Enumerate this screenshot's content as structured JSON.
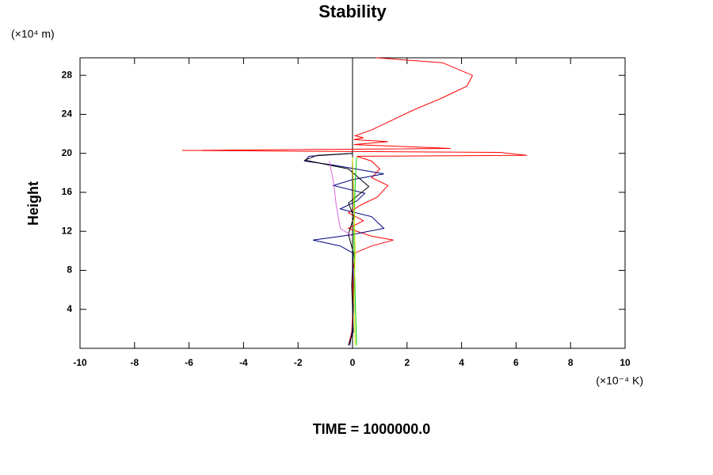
{
  "chart_data": {
    "type": "line",
    "title": "Stability",
    "y_unit": "(×10⁴ m)",
    "y_label": "Height",
    "x_unit": "(×10⁻⁴ K)",
    "footer": "TIME = 1000000.0",
    "xlim": [
      -10,
      10
    ],
    "ylim": [
      0,
      29.8
    ],
    "xticks": [
      -10,
      -8,
      -6,
      -4,
      -2,
      0,
      2,
      4,
      6,
      8,
      10
    ],
    "yticks": [
      4,
      8,
      12,
      16,
      20,
      24,
      28
    ],
    "zero_line": true,
    "series": [
      {
        "color": "#ff0000",
        "x": [
          0.87,
          3.3,
          4.4,
          4.2,
          3.3,
          2.2,
          1.3,
          0.7,
          0.1,
          0.4,
          0.05,
          1.3,
          0.05,
          3.6,
          -6.25,
          5.4,
          6.4,
          0.15,
          0.7,
          1.0,
          0.7,
          1.3,
          0.9,
          0.3,
          -0.15,
          0.4,
          -0.15,
          0.7,
          1.5,
          0.7,
          0.1,
          0,
          0.03,
          -0.03,
          -0.15
        ],
        "y": [
          29.8,
          29.3,
          28,
          26.9,
          25.7,
          24.4,
          23.2,
          22.4,
          21.8,
          21.6,
          21.4,
          21.2,
          20.9,
          20.5,
          20.3,
          20.1,
          19.8,
          19.7,
          19.2,
          18.4,
          17.5,
          16.7,
          15.5,
          14.7,
          13.9,
          13.1,
          12.3,
          11.5,
          11.1,
          10.5,
          9.8,
          7.4,
          5,
          1.7,
          0.3
        ]
      },
      {
        "color": "#000080",
        "x": [
          0,
          -1.6,
          -1.75,
          -0.7,
          1.15,
          0,
          -0.7,
          0.45,
          0.15,
          -0.45,
          0.7,
          1.15,
          -0.15,
          -1.45,
          -0.45,
          0,
          0.05,
          0,
          -0.1
        ],
        "y": [
          20,
          19.7,
          19.2,
          18.8,
          17.9,
          17.3,
          16.7,
          15.9,
          15.1,
          14.3,
          13.5,
          12.3,
          11.6,
          11.1,
          10.5,
          9.8,
          6,
          2,
          0.3
        ]
      },
      {
        "color": "#000000",
        "x": [
          0,
          -1.3,
          -1.75,
          -0.15,
          0.6,
          -0.15,
          0.05,
          -0.15,
          0.03,
          -0.03,
          0.03,
          -0.15
        ],
        "y": [
          20,
          19.8,
          19.3,
          18.4,
          16.6,
          14.9,
          13.5,
          11.7,
          9.8,
          6.5,
          1.7,
          0.3
        ]
      },
      {
        "color": "#dd66dd",
        "x": [
          -0.85,
          -0.7,
          -0.6,
          -0.45,
          0
        ],
        "y": [
          19.2,
          17.1,
          14.7,
          12.3,
          11.5
        ]
      },
      {
        "color": "#00cc00",
        "x": [
          0.15,
          0.1,
          0.05,
          0.1,
          0.15
        ],
        "y": [
          19.6,
          17.2,
          11.5,
          5,
          0.3
        ]
      },
      {
        "color": "#dddd00",
        "x": [
          0,
          0.05,
          0.1,
          0.05,
          0.1
        ],
        "y": [
          19.6,
          15,
          10,
          5,
          0.3
        ]
      }
    ]
  }
}
